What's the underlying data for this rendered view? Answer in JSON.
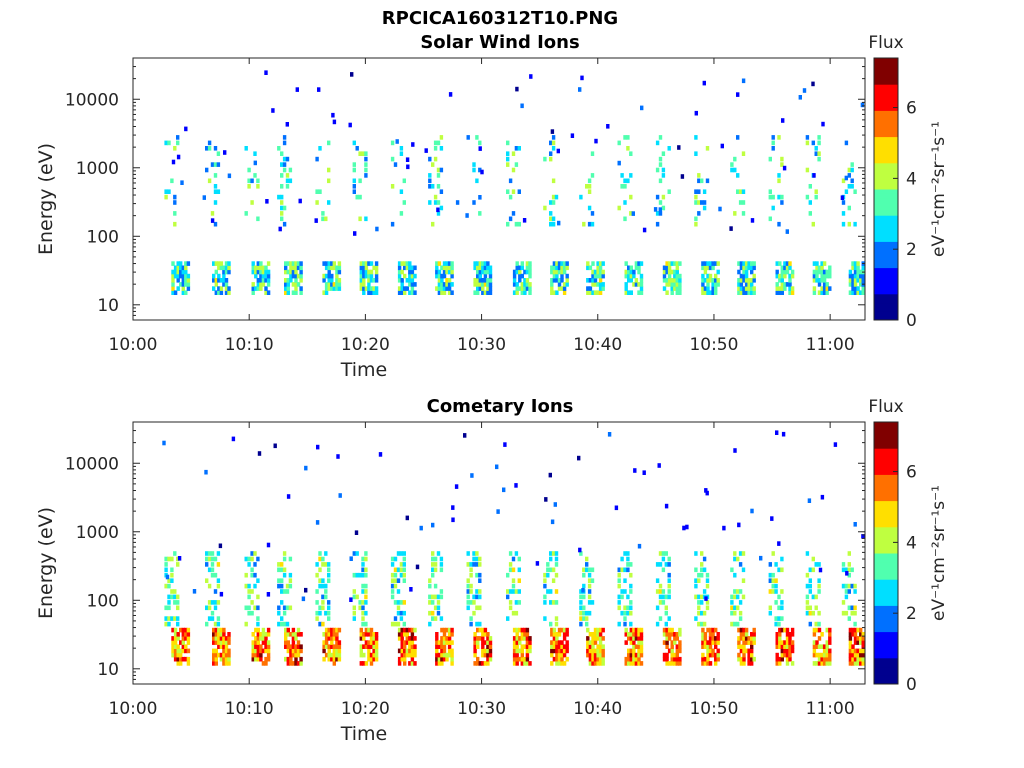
{
  "figure_title": "RPCICA160312T10.PNG",
  "colorscale": [
    "#00008f",
    "#0000ff",
    "#0070ff",
    "#00dfff",
    "#50ffaf",
    "#bfff40",
    "#ffdf00",
    "#ff7000",
    "#ff0000",
    "#800000"
  ],
  "chart_data": [
    {
      "type": "heatmap",
      "title": "Solar Wind Ions",
      "xlabel": "Time",
      "ylabel": "Energy (eV)",
      "x_ticks": [
        "10:00",
        "10:10",
        "10:20",
        "10:30",
        "10:40",
        "10:50",
        "11:00"
      ],
      "x_range_minutes": [
        0,
        63
      ],
      "y_ticks": [
        "10",
        "100",
        "1000",
        "10000"
      ],
      "y_scale": "log",
      "y_range": [
        6,
        40000
      ],
      "colorbar": {
        "title": "Flux",
        "label": "eV⁻¹cm⁻²sr⁻¹s⁻¹",
        "ticks": [
          "0",
          "2",
          "4",
          "6"
        ],
        "range": [
          0,
          7.4
        ]
      },
      "sweep_start_minutes": [
        3.3,
        6.8,
        10.2,
        13.0,
        16.3,
        19.5,
        22.8,
        26.0,
        29.3,
        32.7,
        35.9,
        39.0,
        42.3,
        45.6,
        48.9,
        52.0,
        55.3,
        58.5,
        61.6
      ],
      "low_band": {
        "energy_range_eV": [
          15,
          40
        ],
        "flux_range": [
          1.5,
          4.5
        ]
      },
      "high_band": {
        "energy_range_eV": [
          150,
          3000
        ],
        "flux_range": [
          1.8,
          4.2
        ]
      }
    },
    {
      "type": "heatmap",
      "title": "Cometary Ions",
      "xlabel": "Time",
      "ylabel": "Energy (eV)",
      "x_ticks": [
        "10:00",
        "10:10",
        "10:20",
        "10:30",
        "10:40",
        "10:50",
        "11:00"
      ],
      "x_range_minutes": [
        0,
        63
      ],
      "y_ticks": [
        "10",
        "100",
        "1000",
        "10000"
      ],
      "y_scale": "log",
      "y_range": [
        6,
        40000
      ],
      "colorbar": {
        "title": "Flux",
        "label": "eV⁻¹cm⁻²sr⁻¹s⁻¹",
        "ticks": [
          "0",
          "2",
          "4",
          "6"
        ],
        "range": [
          0,
          7.4
        ]
      },
      "sweep_start_minutes": [
        3.3,
        6.8,
        10.2,
        13.0,
        16.3,
        19.5,
        22.8,
        26.0,
        29.3,
        32.7,
        35.9,
        39.0,
        42.3,
        45.6,
        48.9,
        52.0,
        55.3,
        58.5,
        61.6
      ],
      "low_band": {
        "energy_range_eV": [
          12,
          40
        ],
        "flux_range": [
          4.0,
          6.8
        ]
      },
      "high_band": {
        "energy_range_eV": [
          45,
          500
        ],
        "flux_range": [
          2.0,
          4.5
        ]
      }
    }
  ]
}
